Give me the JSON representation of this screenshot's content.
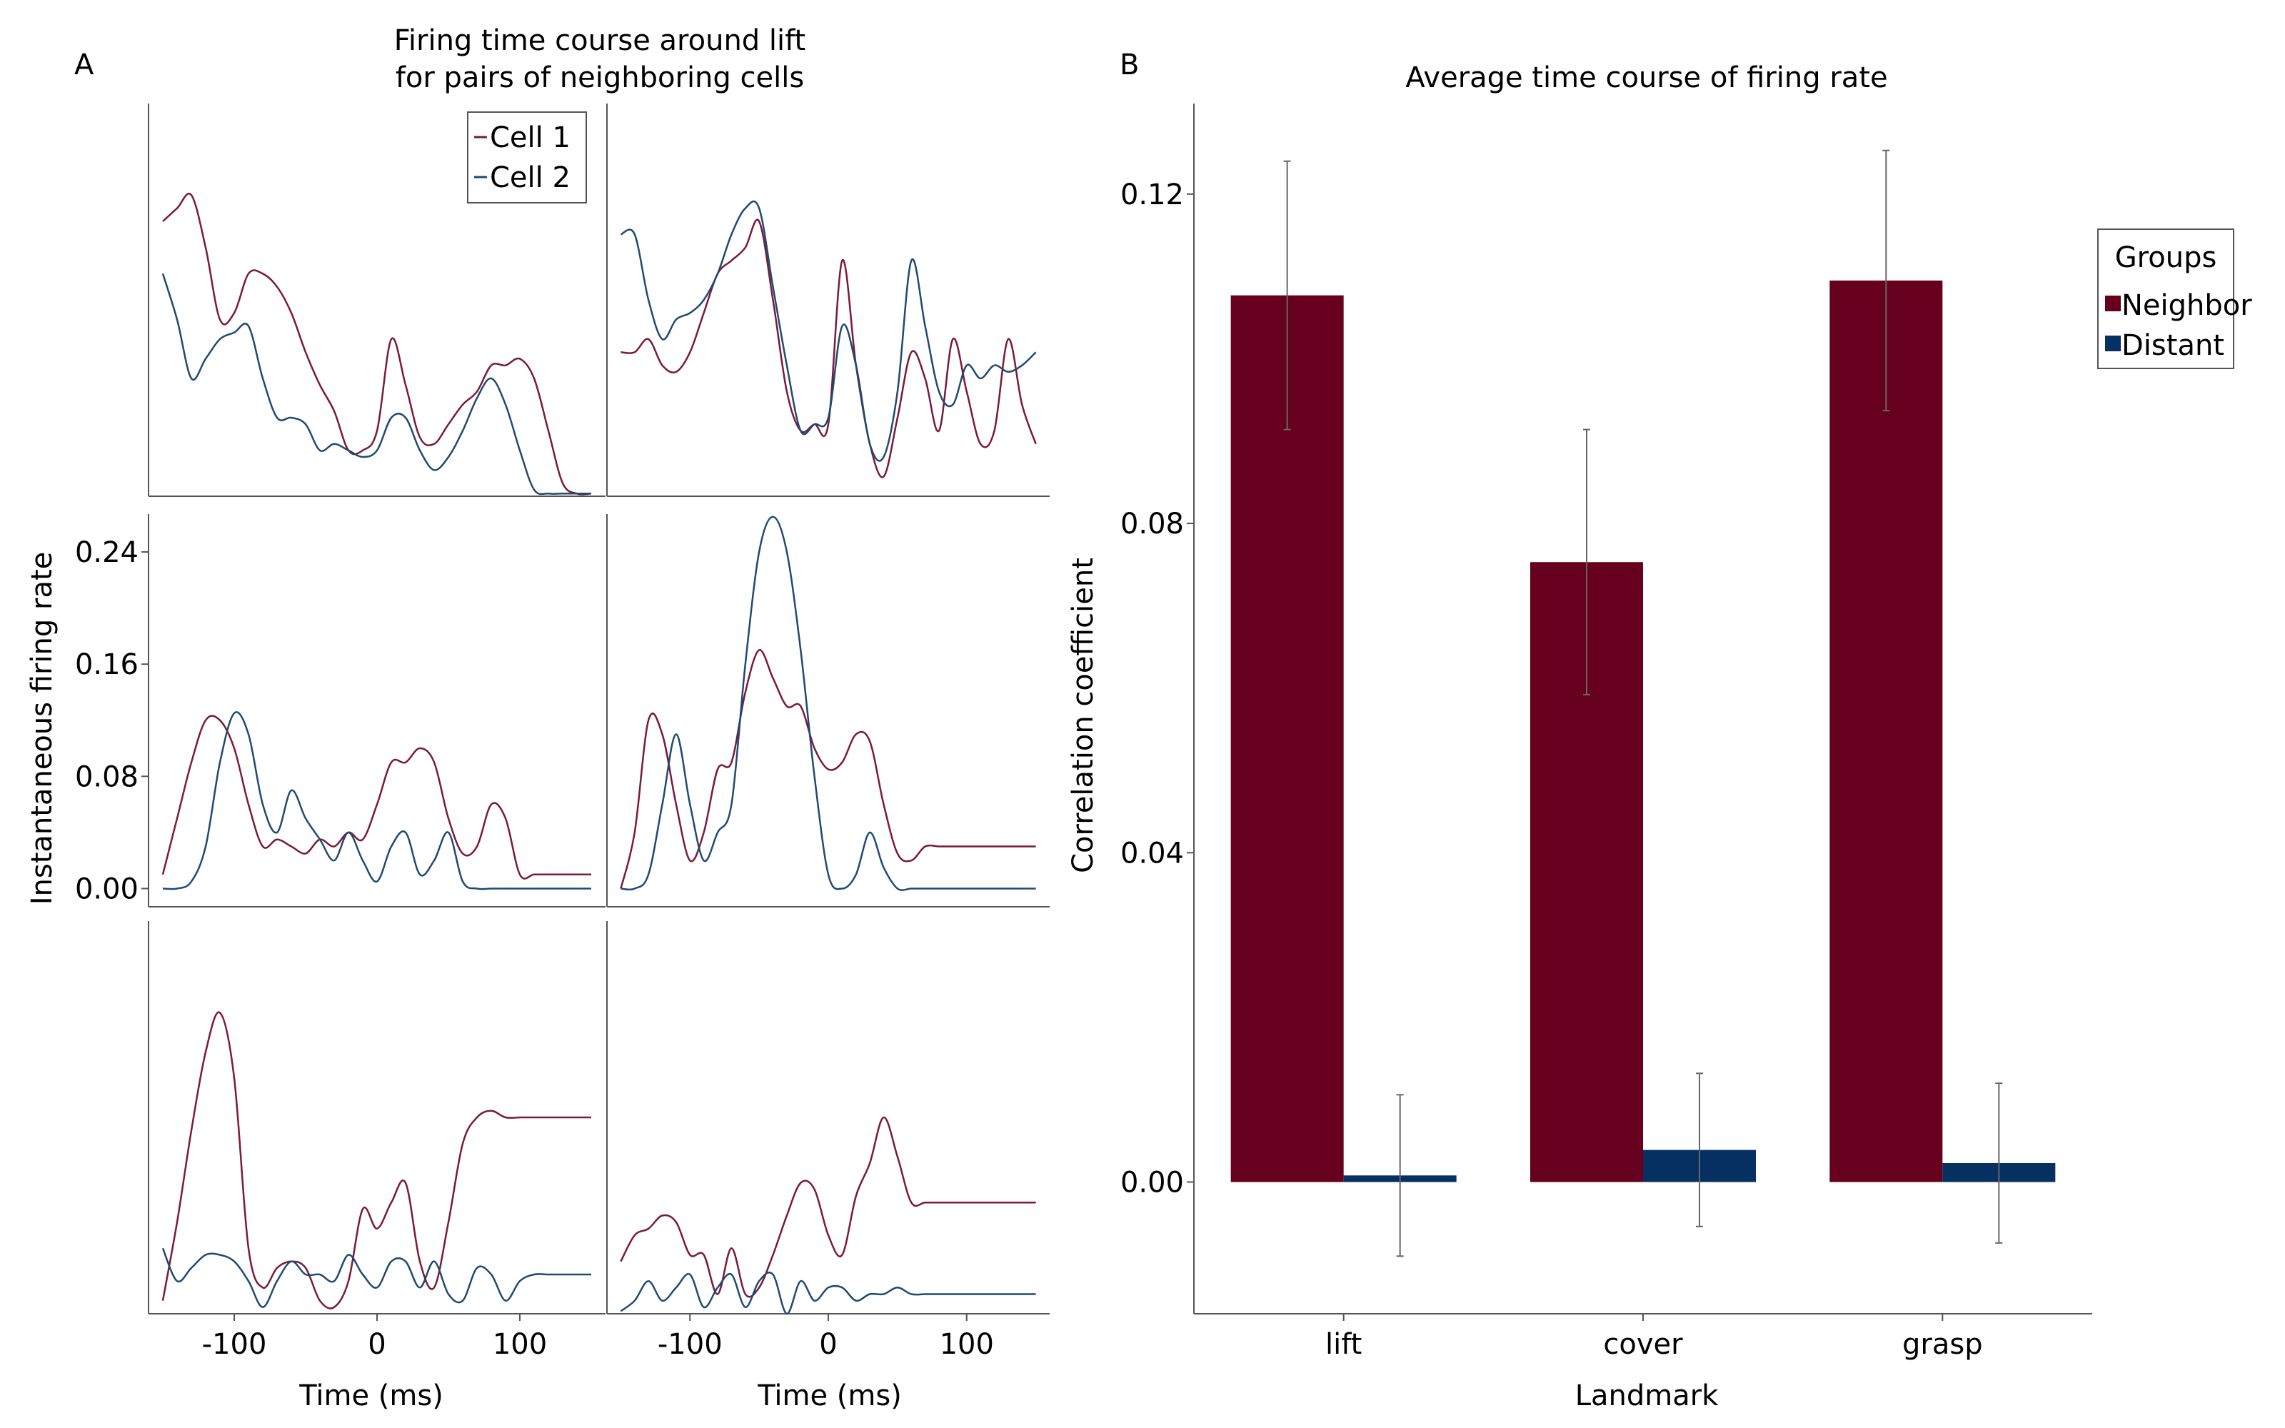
{
  "panel_a": {
    "letter": "A",
    "title_lines": [
      "Firing time course around lift",
      "for pairs of neighboring cells"
    ],
    "ylabel": "Instantaneous firing rate",
    "xlabel": "Time (ms)",
    "legend": [
      {
        "name": "Cell 1",
        "color": "#7a1a3a"
      },
      {
        "name": "Cell 2",
        "color": "#1f4a72"
      }
    ]
  },
  "panel_b": {
    "letter": "B",
    "title": "Average time course of firing rate",
    "ylabel": "Correlation coefficient",
    "xlabel": "Landmark",
    "legend_title": "Groups"
  },
  "chart_data": [
    {
      "type": "line",
      "panel": "A",
      "title": "Firing time course around lift for pairs of neighboring cells",
      "xlabel": "Time (ms)",
      "ylabel": "Instantaneous firing rate",
      "xlim": [
        -160,
        160
      ],
      "x_ticks": [
        "-100",
        "0",
        "100"
      ],
      "x_tick_values": [
        -100,
        0,
        100
      ],
      "y_ticks": [
        "0.00",
        "0.08",
        "0.16",
        "0.24"
      ],
      "y_tick_values": [
        0,
        0.08,
        0.16,
        0.24
      ],
      "grid": false,
      "legend_position": "top-right",
      "x": [
        -150,
        -140,
        -130,
        -120,
        -110,
        -100,
        -90,
        -80,
        -70,
        -60,
        -50,
        -40,
        -30,
        -20,
        -10,
        0,
        10,
        20,
        30,
        40,
        50,
        60,
        70,
        80,
        90,
        100,
        110,
        120,
        130,
        140,
        150
      ],
      "subplots": [
        {
          "ylim": [
            0,
            0.3
          ],
          "series": [
            {
              "name": "Cell 1",
              "values": [
                0.21,
                0.22,
                0.23,
                0.19,
                0.135,
                0.14,
                0.17,
                0.17,
                0.16,
                0.14,
                0.11,
                0.085,
                0.065,
                0.035,
                0.035,
                0.05,
                0.12,
                0.085,
                0.045,
                0.04,
                0.055,
                0.07,
                0.08,
                0.1,
                0.1,
                0.105,
                0.09,
                0.05,
                0.01,
                0.002,
                0.002
              ]
            },
            {
              "name": "Cell 2",
              "values": [
                0.17,
                0.135,
                0.09,
                0.105,
                0.12,
                0.125,
                0.13,
                0.09,
                0.06,
                0.06,
                0.055,
                0.035,
                0.04,
                0.035,
                0.03,
                0.035,
                0.06,
                0.06,
                0.035,
                0.02,
                0.03,
                0.05,
                0.075,
                0.09,
                0.07,
                0.035,
                0.005,
                0.002,
                0.002,
                0.002,
                0.002
              ]
            }
          ]
        },
        {
          "ylim": [
            0,
            0.3
          ],
          "series": [
            {
              "name": "Cell 1",
              "values": [
                0.11,
                0.11,
                0.12,
                0.1,
                0.095,
                0.11,
                0.14,
                0.17,
                0.18,
                0.19,
                0.21,
                0.15,
                0.08,
                0.05,
                0.055,
                0.055,
                0.18,
                0.1,
                0.04,
                0.015,
                0.06,
                0.11,
                0.09,
                0.05,
                0.12,
                0.08,
                0.04,
                0.05,
                0.12,
                0.07,
                0.04
              ]
            },
            {
              "name": "Cell 2",
              "values": [
                0.2,
                0.2,
                0.15,
                0.12,
                0.135,
                0.14,
                0.15,
                0.17,
                0.2,
                0.22,
                0.22,
                0.16,
                0.1,
                0.05,
                0.055,
                0.06,
                0.13,
                0.1,
                0.04,
                0.03,
                0.08,
                0.18,
                0.13,
                0.08,
                0.07,
                0.1,
                0.09,
                0.1,
                0.095,
                0.1,
                0.11
              ]
            }
          ]
        },
        {
          "ylim": [
            -0.013,
            0.267
          ],
          "series": [
            {
              "name": "Cell 1",
              "values": [
                0.01,
                0.05,
                0.09,
                0.12,
                0.12,
                0.1,
                0.06,
                0.03,
                0.035,
                0.03,
                0.025,
                0.035,
                0.03,
                0.04,
                0.035,
                0.06,
                0.09,
                0.09,
                0.1,
                0.09,
                0.05,
                0.025,
                0.03,
                0.06,
                0.05,
                0.01,
                0.01,
                0.01,
                0.01,
                0.01,
                0.01
              ]
            },
            {
              "name": "Cell 2",
              "values": [
                0.0,
                0.0,
                0.005,
                0.03,
                0.09,
                0.125,
                0.11,
                0.06,
                0.04,
                0.07,
                0.05,
                0.035,
                0.02,
                0.04,
                0.02,
                0.005,
                0.03,
                0.04,
                0.01,
                0.02,
                0.04,
                0.005,
                0.0,
                0.0,
                0.0,
                0.0,
                0.0,
                0.0,
                0.0,
                0.0,
                0.0
              ]
            }
          ]
        },
        {
          "ylim": [
            -0.013,
            0.267
          ],
          "series": [
            {
              "name": "Cell 1",
              "values": [
                0.0,
                0.04,
                0.12,
                0.11,
                0.06,
                0.02,
                0.04,
                0.085,
                0.09,
                0.14,
                0.17,
                0.15,
                0.13,
                0.13,
                0.1,
                0.085,
                0.09,
                0.11,
                0.105,
                0.06,
                0.025,
                0.02,
                0.03,
                0.03,
                0.03,
                0.03,
                0.03,
                0.03,
                0.03,
                0.03,
                0.03
              ]
            },
            {
              "name": "Cell 2",
              "values": [
                0.0,
                0.0,
                0.01,
                0.06,
                0.11,
                0.06,
                0.02,
                0.04,
                0.06,
                0.16,
                0.24,
                0.265,
                0.24,
                0.17,
                0.08,
                0.01,
                0.0,
                0.01,
                0.04,
                0.015,
                0.0,
                0.0,
                0.0,
                0.0,
                0.0,
                0.0,
                0.0,
                0.0,
                0.0,
                0.0,
                0.0
              ]
            }
          ]
        },
        {
          "ylim": [
            0,
            0.3
          ],
          "series": [
            {
              "name": "Cell 1",
              "values": [
                0.01,
                0.07,
                0.14,
                0.2,
                0.23,
                0.18,
                0.05,
                0.02,
                0.035,
                0.04,
                0.035,
                0.01,
                0.005,
                0.025,
                0.08,
                0.065,
                0.085,
                0.1,
                0.04,
                0.02,
                0.07,
                0.13,
                0.15,
                0.155,
                0.15,
                0.15,
                0.15,
                0.15,
                0.15,
                0.15,
                0.15
              ]
            },
            {
              "name": "Cell 2",
              "values": [
                0.05,
                0.025,
                0.035,
                0.045,
                0.045,
                0.04,
                0.025,
                0.005,
                0.025,
                0.04,
                0.03,
                0.03,
                0.025,
                0.045,
                0.03,
                0.02,
                0.04,
                0.04,
                0.02,
                0.04,
                0.015,
                0.01,
                0.035,
                0.03,
                0.01,
                0.025,
                0.03,
                0.03,
                0.03,
                0.03,
                0.03
              ]
            }
          ]
        },
        {
          "ylim": [
            0,
            0.3
          ],
          "series": [
            {
              "name": "Cell 1",
              "values": [
                0.04,
                0.06,
                0.065,
                0.075,
                0.07,
                0.045,
                0.045,
                0.015,
                0.05,
                0.015,
                0.02,
                0.045,
                0.075,
                0.1,
                0.095,
                0.06,
                0.045,
                0.09,
                0.115,
                0.15,
                0.12,
                0.085,
                0.085,
                0.085,
                0.085,
                0.085,
                0.085,
                0.085,
                0.085,
                0.085,
                0.085
              ]
            },
            {
              "name": "Cell 2",
              "values": [
                0.002,
                0.01,
                0.025,
                0.01,
                0.02,
                0.03,
                0.005,
                0.02,
                0.03,
                0.005,
                0.025,
                0.03,
                0.0,
                0.025,
                0.01,
                0.02,
                0.02,
                0.01,
                0.015,
                0.015,
                0.02,
                0.015,
                0.015,
                0.015,
                0.015,
                0.015,
                0.015,
                0.015,
                0.015,
                0.015,
                0.015
              ]
            }
          ]
        }
      ]
    },
    {
      "type": "bar",
      "panel": "B",
      "title": "Average time course of firing rate",
      "xlabel": "Landmark",
      "ylabel": "Correlation coefficient",
      "categories": [
        "lift",
        "cover",
        "grasp"
      ],
      "y_ticks": [
        "0.00",
        "0.04",
        "0.08",
        "0.12"
      ],
      "y_tick_values": [
        0,
        0.04,
        0.08,
        0.12
      ],
      "ylim": [
        -0.016,
        0.131
      ],
      "grid": false,
      "legend_title": "Groups",
      "legend_position": "right",
      "series": [
        {
          "name": "Neighbor",
          "color": "#67001f",
          "values": [
            0.1077,
            0.0753,
            0.1095
          ],
          "error": [
            0.0163,
            0.0161,
            0.0158
          ]
        },
        {
          "name": "Distant",
          "color": "#053061",
          "values": [
            0.0008,
            0.0039,
            0.0023
          ],
          "error": [
            0.0098,
            0.0093,
            0.0097
          ]
        }
      ]
    }
  ]
}
